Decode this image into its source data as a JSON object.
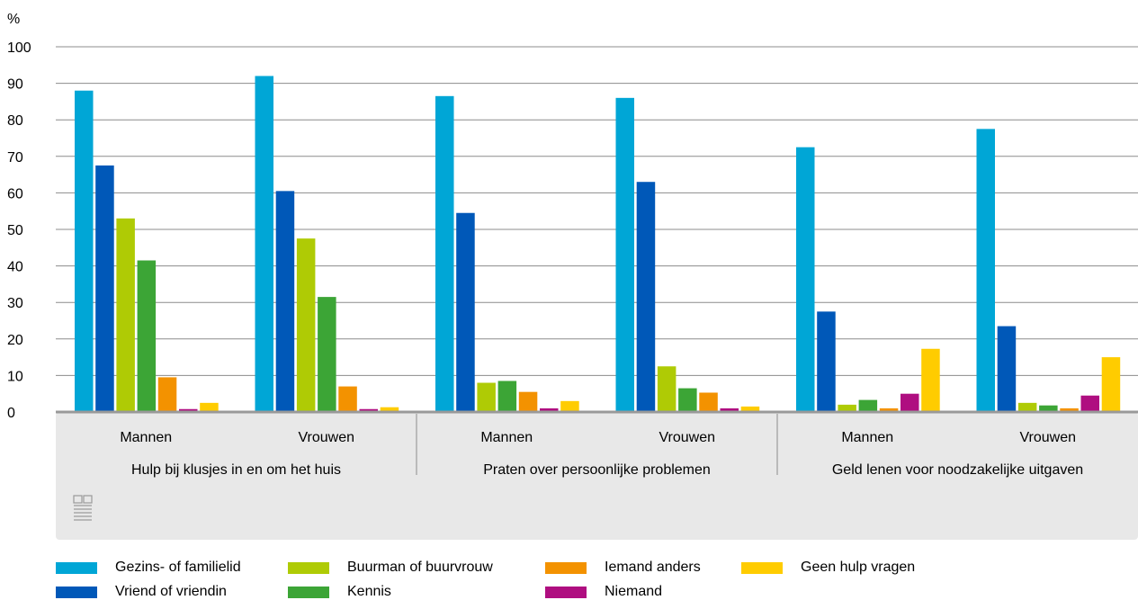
{
  "chart_data": {
    "type": "bar",
    "y_unit": "%",
    "ylim": [
      0,
      100
    ],
    "yticks": [
      0,
      10,
      20,
      30,
      40,
      50,
      60,
      70,
      80,
      90,
      100
    ],
    "groups": [
      {
        "label": "Hulp bij klusjes in en om het huis",
        "subgroups": [
          {
            "label": "Mannen",
            "values": [
              88,
              67.5,
              53,
              41.5,
              9.5,
              0.8,
              2.5
            ]
          },
          {
            "label": "Vrouwen",
            "values": [
              92,
              60.5,
              47.5,
              31.5,
              7,
              0.8,
              1.3
            ]
          }
        ]
      },
      {
        "label": "Praten over persoonlijke problemen",
        "subgroups": [
          {
            "label": "Mannen",
            "values": [
              86.5,
              54.5,
              8,
              8.5,
              5.5,
              1,
              3
            ]
          },
          {
            "label": "Vrouwen",
            "values": [
              86,
              63,
              12.5,
              6.5,
              5.3,
              1,
              1.5
            ]
          }
        ]
      },
      {
        "label": "Geld lenen voor noodzakelijke uitgaven",
        "subgroups": [
          {
            "label": "Mannen",
            "values": [
              72.5,
              27.5,
              2,
              3.3,
              1,
              5,
              17.3
            ]
          },
          {
            "label": "Vrouwen",
            "values": [
              77.5,
              23.5,
              2.5,
              1.8,
              1,
              4.5,
              15
            ]
          }
        ]
      }
    ],
    "series": [
      {
        "name": "Gezins- of familielid",
        "color": "#00a6d6"
      },
      {
        "name": "Vriend of vriendin",
        "color": "#0058b8"
      },
      {
        "name": "Buurman of buurvrouw",
        "color": "#afcb05"
      },
      {
        "name": "Kennis",
        "color": "#3ca536"
      },
      {
        "name": "Iemand anders",
        "color": "#f39200"
      },
      {
        "name": "Niemand",
        "color": "#af0e80"
      },
      {
        "name": "Geen hulp vragen",
        "color": "#ffcc00"
      }
    ],
    "grid": true,
    "legend_position": "bottom"
  }
}
